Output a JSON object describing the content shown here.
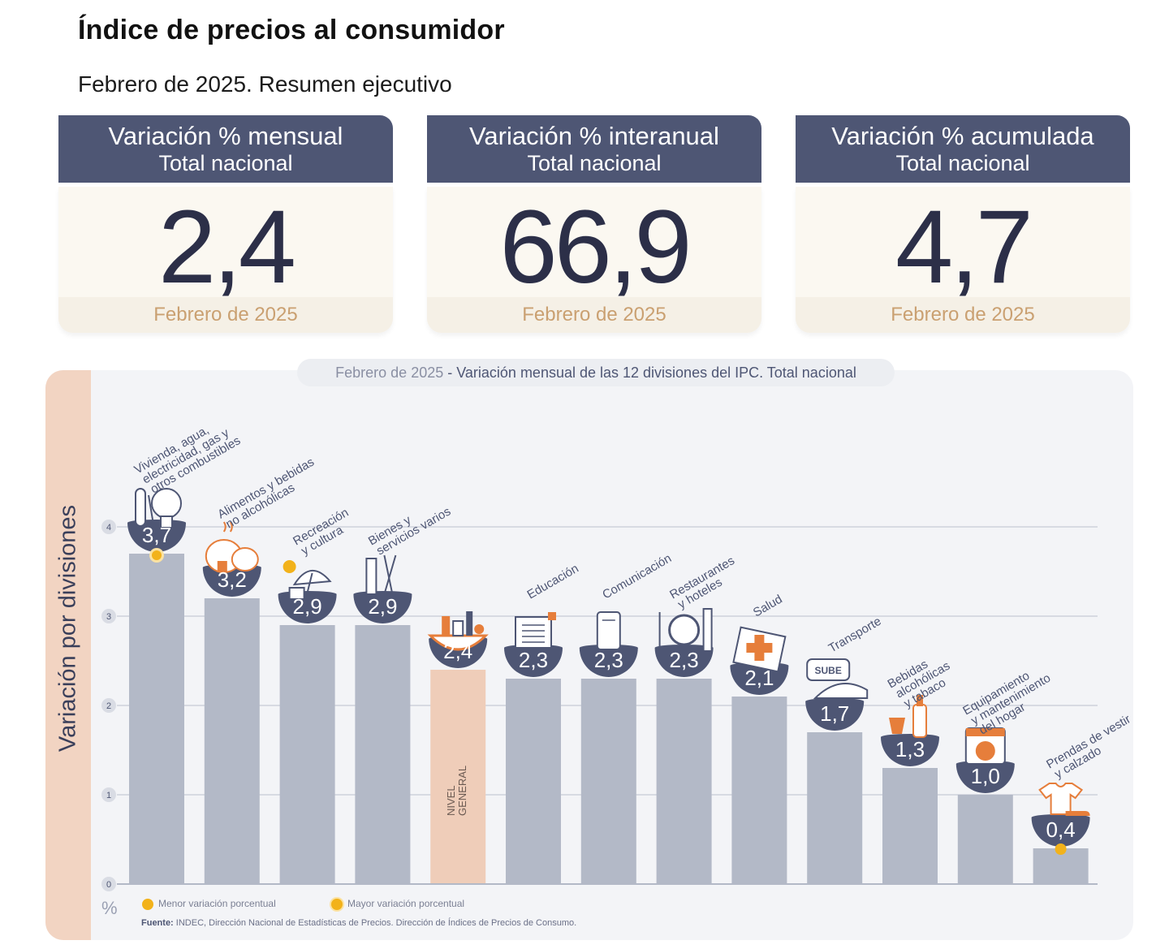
{
  "header": {
    "title": "Índice de precios al consumidor",
    "subtitle": "Febrero de 2025. Resumen ejecutivo"
  },
  "kpis": [
    {
      "title": "Variación % mensual",
      "subtitle": "Total nacional",
      "value": "2,4",
      "date": "Febrero de 2025"
    },
    {
      "title": "Variación % interanual",
      "subtitle": "Total nacional",
      "value": "66,9",
      "date": "Febrero de 2025"
    },
    {
      "title": "Variación % acumulada",
      "subtitle": "Total nacional",
      "value": "4,7",
      "date": "Febrero de 2025"
    }
  ],
  "panel": {
    "axis_label": "Variación por divisiones",
    "pct_sign": "%"
  },
  "legend": {
    "min_label": "Menor variación porcentual",
    "max_label": "Mayor variación porcentual"
  },
  "source": {
    "label": "Fuente:",
    "text": "INDEC, Dirección Nacional de Estadísticas de Precios. Dirección de Índices de Precios de Consumo."
  },
  "chart_data": {
    "type": "bar",
    "title_date": "Febrero de 2025",
    "title_separator": " - ",
    "title": "Variación mensual de las 12 divisiones del IPC. Total nacional",
    "ylabel": "Variación por divisiones",
    "yunit": "%",
    "ylim": [
      0,
      4
    ],
    "yticks": [
      "0",
      "1",
      "2",
      "3",
      "4"
    ],
    "grid": true,
    "categories": [
      [
        "Vivienda, agua,",
        "electricidad, gas y",
        "otros combustibles"
      ],
      [
        "Alimentos y bebidas",
        "no alcohólicas"
      ],
      [
        "Recreación",
        "y cultura"
      ],
      [
        "Bienes y",
        "servicios varios"
      ],
      [
        "NIVEL",
        "GENERAL"
      ],
      [
        "Educación"
      ],
      [
        "Comunicación"
      ],
      [
        "Restaurantes",
        "y hoteles"
      ],
      [
        "Salud"
      ],
      [
        "Transporte"
      ],
      [
        "Bebidas",
        "alcohólicas",
        "y tabaco"
      ],
      [
        "Equipamiento",
        "y mantenimiento",
        "del hogar"
      ],
      [
        "Prendas de vestir",
        "y calzado"
      ]
    ],
    "values": [
      3.7,
      3.2,
      2.9,
      2.9,
      2.4,
      2.3,
      2.3,
      2.3,
      2.1,
      1.7,
      1.3,
      1.0,
      0.4
    ],
    "value_labels": [
      "3,7",
      "3,2",
      "2,9",
      "2,9",
      "2,4",
      "2,3",
      "2,3",
      "2,3",
      "2,1",
      "1,7",
      "1,3",
      "1,0",
      "0,4"
    ],
    "icons": [
      "house-utilities-icon",
      "food-icon",
      "recreation-icon",
      "personal-care-icon",
      "shopping-basket-icon",
      "education-icon",
      "phone-icon",
      "restaurant-icon",
      "health-icon",
      "transport-icon",
      "beverage-icon",
      "household-icon",
      "clothing-icon"
    ],
    "highlight_index": 4,
    "max_marker_index": 0,
    "min_marker_index": 12,
    "transport_badge": "SUBE",
    "colors": {
      "bar": "#b3b9c7",
      "highlight_bar": "#efcdb9",
      "badge": "#4e5674",
      "icon_accent": "#e67e3b",
      "marker": "#f2b21b",
      "label": "#4e5674"
    }
  }
}
